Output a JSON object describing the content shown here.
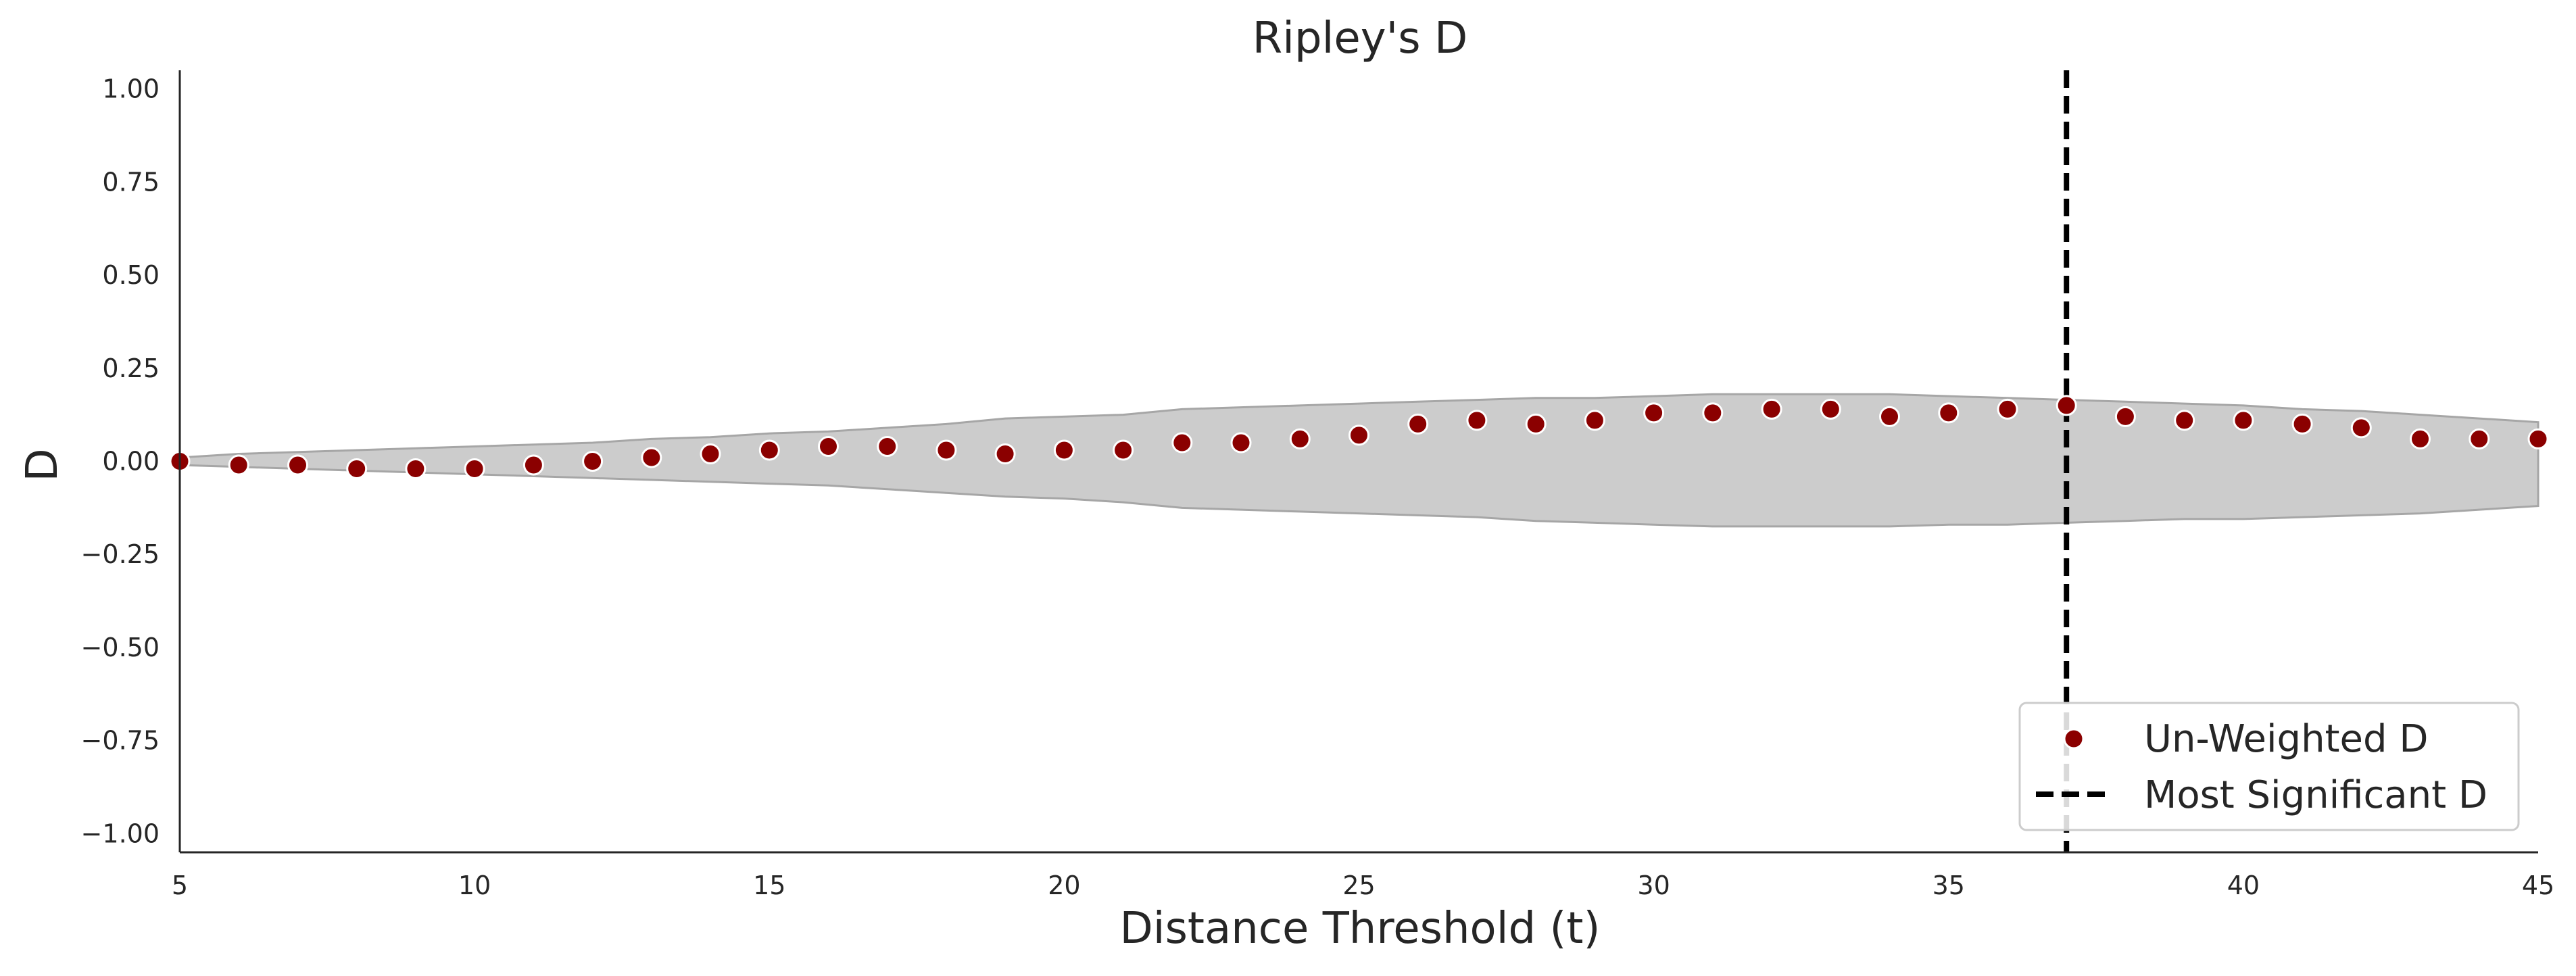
{
  "chart_data": {
    "type": "scatter",
    "title": "Ripley's D",
    "xlabel": "Distance Threshold (t)",
    "ylabel": "D",
    "xlim": [
      5,
      45
    ],
    "ylim": [
      -1.05,
      1.05
    ],
    "xticks": [
      "5",
      "10",
      "15",
      "20",
      "25",
      "30",
      "35",
      "40",
      "45"
    ],
    "yticks": [
      "−1.00",
      "−0.75",
      "−0.50",
      "−0.25",
      "0.00",
      "0.25",
      "0.50",
      "0.75",
      "1.00"
    ],
    "grid": false,
    "legend_position": "bottom-right",
    "series": [
      {
        "name": "Un-Weighted D",
        "color": "#8b0000",
        "marker": "circle",
        "x": [
          5,
          6,
          7,
          8,
          9,
          10,
          11,
          12,
          13,
          14,
          15,
          16,
          17,
          18,
          19,
          20,
          21,
          22,
          23,
          24,
          25,
          26,
          27,
          28,
          29,
          30,
          31,
          32,
          33,
          34,
          35,
          36,
          37,
          38,
          39,
          40,
          41,
          42,
          43,
          44,
          45
        ],
        "y": [
          0.0,
          -0.01,
          -0.01,
          -0.02,
          -0.02,
          -0.02,
          -0.01,
          0.0,
          0.01,
          0.02,
          0.03,
          0.04,
          0.04,
          0.03,
          0.02,
          0.03,
          0.03,
          0.05,
          0.05,
          0.06,
          0.07,
          0.1,
          0.11,
          0.1,
          0.11,
          0.13,
          0.13,
          0.14,
          0.14,
          0.12,
          0.13,
          0.14,
          0.15,
          0.12,
          0.11,
          0.11,
          0.1,
          0.09,
          0.06,
          0.06,
          0.06
        ]
      }
    ],
    "envelope": {
      "color": "#cccccc",
      "x": [
        5,
        6,
        7,
        8,
        9,
        10,
        11,
        12,
        13,
        14,
        15,
        16,
        17,
        18,
        19,
        20,
        21,
        22,
        23,
        24,
        25,
        26,
        27,
        28,
        29,
        30,
        31,
        32,
        33,
        34,
        35,
        36,
        37,
        38,
        39,
        40,
        41,
        42,
        43,
        44,
        45
      ],
      "upper": [
        0.01,
        0.02,
        0.025,
        0.03,
        0.035,
        0.04,
        0.045,
        0.05,
        0.06,
        0.065,
        0.075,
        0.08,
        0.09,
        0.1,
        0.115,
        0.12,
        0.125,
        0.14,
        0.145,
        0.15,
        0.155,
        0.16,
        0.165,
        0.17,
        0.17,
        0.175,
        0.18,
        0.18,
        0.18,
        0.18,
        0.175,
        0.17,
        0.165,
        0.16,
        0.155,
        0.15,
        0.14,
        0.135,
        0.125,
        0.115,
        0.105
      ],
      "lower": [
        -0.01,
        -0.015,
        -0.02,
        -0.025,
        -0.03,
        -0.035,
        -0.04,
        -0.045,
        -0.05,
        -0.055,
        -0.06,
        -0.065,
        -0.075,
        -0.085,
        -0.095,
        -0.1,
        -0.11,
        -0.125,
        -0.13,
        -0.135,
        -0.14,
        -0.145,
        -0.15,
        -0.16,
        -0.165,
        -0.17,
        -0.175,
        -0.175,
        -0.175,
        -0.175,
        -0.17,
        -0.17,
        -0.165,
        -0.16,
        -0.155,
        -0.155,
        -0.15,
        -0.145,
        -0.14,
        -0.13,
        -0.12
      ]
    },
    "vline": {
      "name": "Most Significant D",
      "x": 37,
      "color": "#000000",
      "style": "dashed"
    }
  }
}
